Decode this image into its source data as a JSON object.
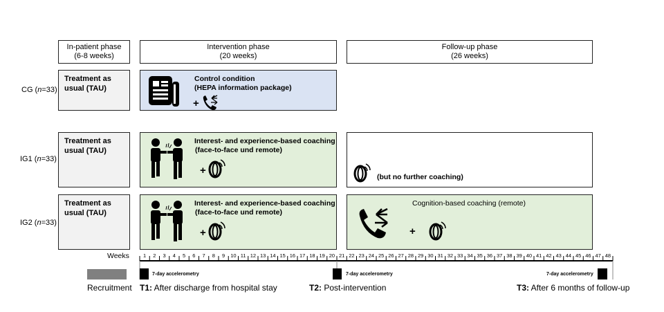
{
  "phases": [
    {
      "title": "In-patient phase",
      "duration": "(6-8 weeks)"
    },
    {
      "title": "Intervention phase",
      "duration": "(20 weeks)"
    },
    {
      "title": "Follow-up phase",
      "duration": "(26 weeks)"
    }
  ],
  "groups": [
    {
      "label": "CG (",
      "italic": "n",
      "suffix": "=33)",
      "tau": "Treatment as usual (TAU)",
      "intervention": {
        "line1": "Control condition",
        "line2": "(HEPA information package)",
        "icons": [
          "newspaper-icon",
          "phone-icon"
        ]
      },
      "followup": null
    },
    {
      "label": "IG1 (",
      "italic": "n",
      "suffix": "=33)",
      "tau": "Treatment as usual (TAU)",
      "intervention": {
        "line1": "Interest- and experience-based coaching",
        "line2": "(face-to-face und remote)",
        "icons": [
          "runners-icon",
          "wearable-ring-icon"
        ]
      },
      "followup": {
        "text": "(but no further coaching)",
        "icons": [
          "wearable-ring-icon"
        ]
      }
    },
    {
      "label": "IG2 (",
      "italic": "n",
      "suffix": "=33)",
      "tau": "Treatment as usual (TAU)",
      "intervention": {
        "line1": "Interest- and experience-based coaching",
        "line2": "(face-to-face und remote)",
        "icons": [
          "runners-icon",
          "wearable-ring-icon"
        ]
      },
      "followup": {
        "text": "Cognition-based coaching (remote)",
        "icons": [
          "phone-icon",
          "wearable-ring-icon"
        ]
      }
    }
  ],
  "plus": "+",
  "timeline": {
    "weeks_label": "Weeks",
    "weeks": [
      1,
      2,
      3,
      4,
      5,
      6,
      7,
      8,
      9,
      10,
      11,
      12,
      13,
      14,
      15,
      16,
      17,
      18,
      19,
      20,
      21,
      22,
      23,
      24,
      25,
      26,
      27,
      28,
      29,
      30,
      31,
      32,
      33,
      34,
      35,
      36,
      37,
      38,
      39,
      40,
      41,
      42,
      43,
      44,
      45,
      46,
      47,
      48
    ],
    "recruitment": "Recruitment",
    "accelerometry": "7-day accelerometry",
    "t1_code": "T1:",
    "t1": " After discharge from hospital stay",
    "t2_code": "T2:",
    "t2": " Post-intervention",
    "t3_code": "T3:",
    "t3": " After 6 months of follow-up"
  },
  "colors": {
    "control": "#dae3f3",
    "coaching": "#e2efda",
    "tau": "#f2f2f2",
    "recruitment": "#808080"
  }
}
